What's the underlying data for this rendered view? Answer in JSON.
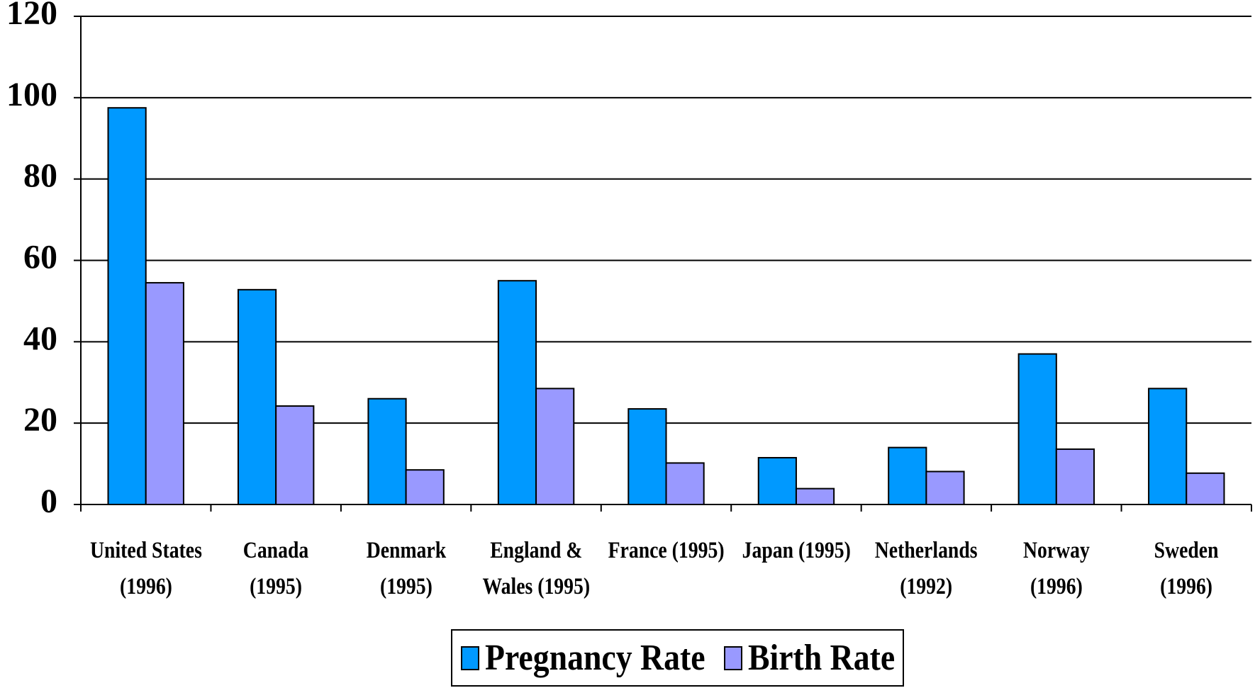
{
  "chart_data": {
    "type": "bar",
    "categories": [
      "United States\n(1996)",
      "Canada\n(1995)",
      "Denmark\n(1995)",
      "England &\nWales (1995)",
      "France (1995)",
      "Japan (1995)",
      "Netherlands\n(1992)",
      "Norway\n(1996)",
      "Sweden\n(1996)"
    ],
    "series": [
      {
        "name": "Pregnancy Rate",
        "color": "#0099ff",
        "values": [
          97.5,
          52.8,
          26,
          55,
          23.5,
          11.5,
          14,
          37,
          28.5
        ]
      },
      {
        "name": "Birth Rate",
        "color": "#9999ff",
        "values": [
          54.5,
          24.2,
          8.5,
          28.5,
          10.2,
          3.9,
          8.1,
          13.6,
          7.7
        ]
      }
    ],
    "ylim": [
      0,
      120
    ],
    "yticks": [
      0,
      20,
      40,
      60,
      80,
      100,
      120
    ],
    "grid": true,
    "legend": "bottom"
  }
}
